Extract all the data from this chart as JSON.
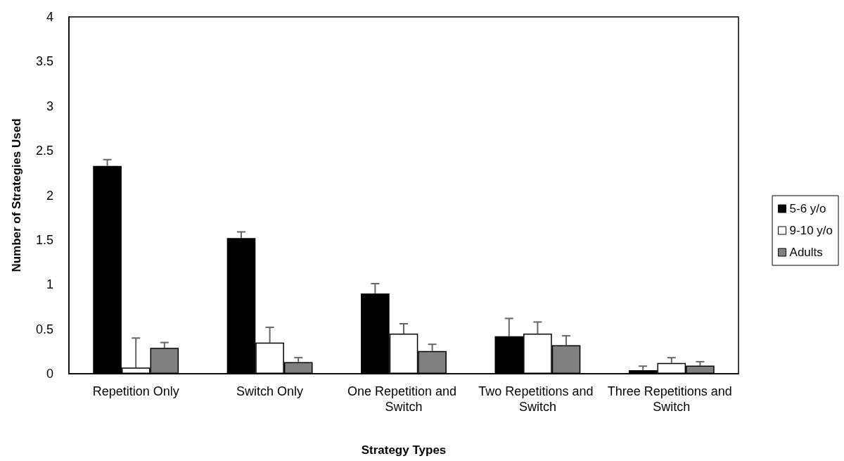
{
  "chart_data": {
    "type": "bar",
    "xlabel": "Strategy Types",
    "ylabel": "Number of Strategies Used",
    "categories": [
      "Repetition Only",
      "Switch Only",
      "One Repetition and Switch",
      "Two Repetitions and Switch",
      "Three Repetitions and Switch"
    ],
    "series": [
      {
        "name": "5-6 y/o",
        "color": "#000000",
        "values": [
          2.33,
          1.52,
          0.9,
          0.42,
          0.04
        ],
        "errors": [
          [
            2.33,
            2.4
          ],
          [
            1.52,
            1.59
          ],
          [
            0.9,
            1.01
          ],
          [
            0.42,
            0.62
          ],
          [
            0.04,
            0.085
          ]
        ]
      },
      {
        "name": "9-10 y/o",
        "color": "#ffffff",
        "values": [
          0.07,
          0.35,
          0.45,
          0.45,
          0.12
        ],
        "errors": [
          [
            0.07,
            0.4
          ],
          [
            0.35,
            0.52
          ],
          [
            0.45,
            0.56
          ],
          [
            0.45,
            0.58
          ],
          [
            0.12,
            0.18
          ]
        ]
      },
      {
        "name": "Adults",
        "color": "#808080",
        "values": [
          0.29,
          0.13,
          0.255,
          0.32,
          0.09
        ],
        "errors": [
          [
            0.29,
            0.35
          ],
          [
            0.13,
            0.18
          ],
          [
            0.255,
            0.33
          ],
          [
            0.32,
            0.425
          ],
          [
            0.09,
            0.135
          ]
        ]
      }
    ],
    "ylim": [
      0,
      4
    ],
    "yticks": [
      0,
      0.5,
      1,
      1.5,
      2,
      2.5,
      3,
      3.5,
      4
    ],
    "grid": false,
    "legend": "right"
  }
}
